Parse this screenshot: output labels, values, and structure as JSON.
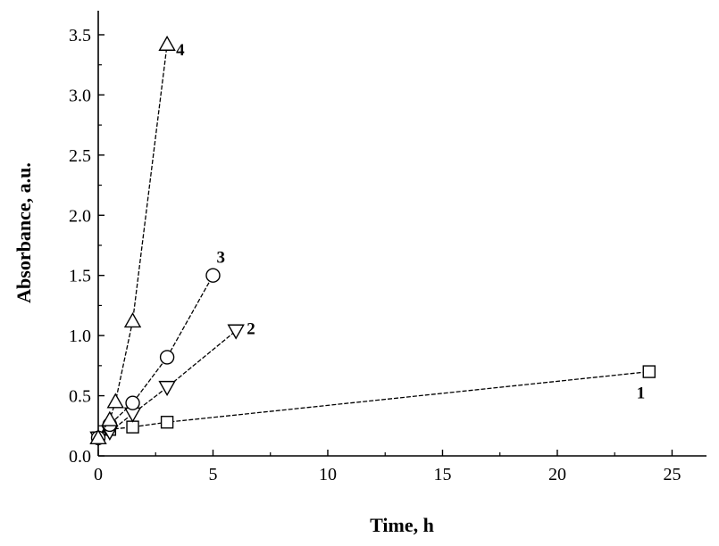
{
  "chart_data": {
    "type": "scatter",
    "title": "",
    "xlabel": "Time, h",
    "ylabel": "Absorbance, a.u.",
    "xlim": [
      0,
      26.5
    ],
    "ylim": [
      0,
      3.7
    ],
    "xticks": [
      0,
      5,
      10,
      15,
      20,
      25
    ],
    "yticks": [
      0.0,
      0.5,
      1.0,
      1.5,
      2.0,
      2.5,
      3.0,
      3.5
    ],
    "xtick_labels": [
      "0",
      "5",
      "10",
      "15",
      "20",
      "25"
    ],
    "ytick_labels": [
      "0.0",
      "0.5",
      "1.0",
      "1.5",
      "2.0",
      "2.5",
      "3.0",
      "3.5"
    ],
    "grid": false,
    "legend": "none",
    "line_style": "dashed",
    "colors": {
      "ink": "#000000",
      "marker_fill": "#ffffff"
    },
    "series": [
      {
        "name": "1",
        "marker": "square",
        "x": [
          0,
          0.5,
          1.5,
          3,
          24
        ],
        "y": [
          0.15,
          0.22,
          0.24,
          0.28,
          0.7
        ]
      },
      {
        "name": "2",
        "marker": "triangle-down",
        "x": [
          0,
          0.5,
          1.5,
          3,
          6
        ],
        "y": [
          0.15,
          0.2,
          0.35,
          0.57,
          1.04
        ]
      },
      {
        "name": "3",
        "marker": "circle",
        "x": [
          0,
          0.5,
          1.5,
          3,
          5
        ],
        "y": [
          0.15,
          0.26,
          0.44,
          0.82,
          1.5
        ]
      },
      {
        "name": "4",
        "marker": "triangle-up",
        "x": [
          0,
          0.5,
          0.75,
          1.5,
          3
        ],
        "y": [
          0.15,
          0.3,
          0.45,
          1.12,
          3.42
        ]
      }
    ]
  }
}
